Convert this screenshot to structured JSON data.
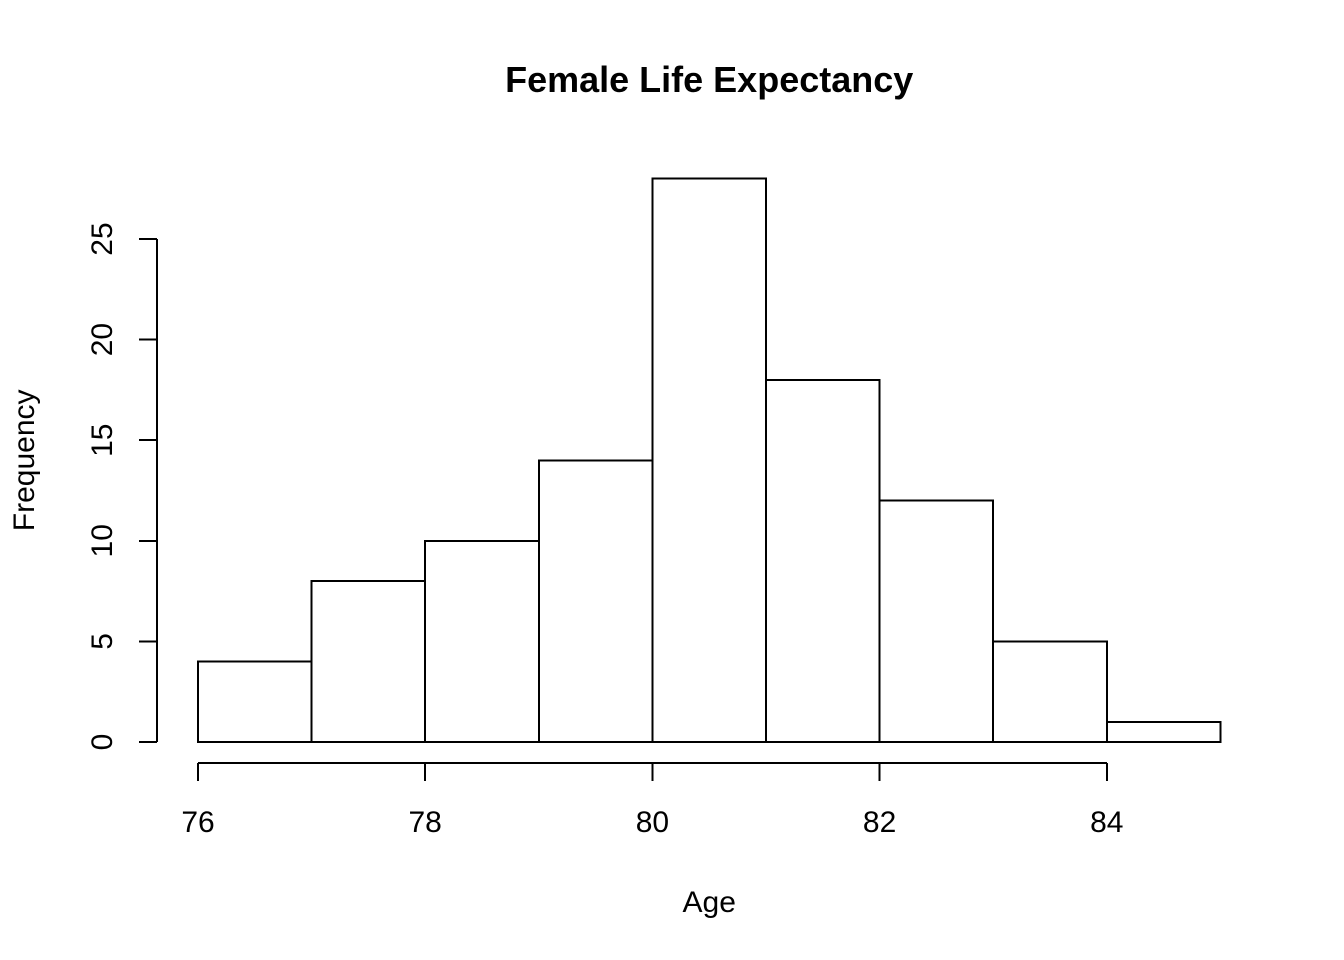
{
  "figure": {
    "background_color": "#ffffff",
    "foreground_color": "#000000"
  },
  "chart_data": {
    "type": "bar",
    "subtype": "histogram",
    "title": "Female Life Expectancy",
    "xlabel": "Age",
    "ylabel": "Frequency",
    "bin_edges": [
      76,
      77,
      78,
      79,
      80,
      81,
      82,
      83,
      84,
      85
    ],
    "categories": [
      "76-77",
      "77-78",
      "78-79",
      "79-80",
      "80-81",
      "81-82",
      "82-83",
      "83-84",
      "84-85"
    ],
    "values": [
      4,
      8,
      10,
      14,
      28,
      18,
      12,
      5,
      1
    ],
    "x_ticks": [
      76,
      78,
      80,
      82,
      84
    ],
    "x_tick_labels": [
      "76",
      "78",
      "80",
      "82",
      "84"
    ],
    "y_ticks": [
      0,
      5,
      10,
      15,
      20,
      25
    ],
    "y_tick_labels": [
      "0",
      "5",
      "10",
      "15",
      "20",
      "25"
    ],
    "xlim": [
      76,
      85
    ],
    "ylim": [
      0,
      28
    ],
    "grid": false,
    "legend": "none",
    "bar_fill": "#ffffff",
    "bar_stroke": "#000000",
    "axis_color": "#000000"
  }
}
